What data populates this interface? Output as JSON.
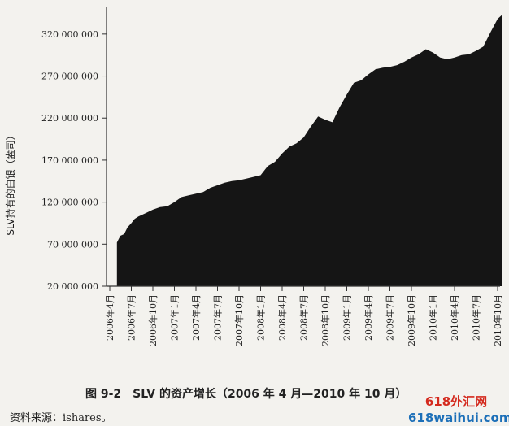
{
  "chart_data": {
    "type": "area",
    "title": "",
    "ylabel": "SLV持有的白银（盎司）",
    "xlabel": "",
    "ylim": [
      20000000,
      345000000
    ],
    "yticks": [
      20000000,
      70000000,
      120000000,
      170000000,
      220000000,
      270000000,
      320000000
    ],
    "ytick_labels": [
      "20 000 000",
      "70 000 000",
      "120 000 000",
      "170 000 000",
      "220 000 000",
      "270 000 000",
      "320 000 000"
    ],
    "xticks": [
      "2006年4月",
      "2006年7月",
      "2006年10月",
      "2007年1月",
      "2007年4月",
      "2007年7月",
      "2007年10月",
      "2008年1月",
      "2008年4月",
      "2008年7月",
      "2008年10月",
      "2009年1月",
      "2009年4月",
      "2009年7月",
      "2009年10月",
      "2010年1月",
      "2010年4月",
      "2010年7月",
      "2010年10月"
    ],
    "x_start": "2006-04",
    "x_end": "2010-10",
    "grid": false,
    "fill_color": "#151515",
    "points": [
      [
        "2006-05-01",
        72000000
      ],
      [
        "2006-05-15",
        80000000
      ],
      [
        "2006-06-01",
        82000000
      ],
      [
        "2006-06-15",
        90000000
      ],
      [
        "2006-07-01",
        95000000
      ],
      [
        "2006-07-15",
        100000000
      ],
      [
        "2006-08-01",
        103000000
      ],
      [
        "2006-09-01",
        107000000
      ],
      [
        "2006-10-01",
        111000000
      ],
      [
        "2006-11-01",
        114000000
      ],
      [
        "2006-12-01",
        115000000
      ],
      [
        "2007-01-01",
        120000000
      ],
      [
        "2007-02-01",
        126000000
      ],
      [
        "2007-03-01",
        128000000
      ],
      [
        "2007-04-01",
        130000000
      ],
      [
        "2007-05-01",
        132000000
      ],
      [
        "2007-06-01",
        137000000
      ],
      [
        "2007-07-01",
        140000000
      ],
      [
        "2007-08-01",
        143000000
      ],
      [
        "2007-09-01",
        145000000
      ],
      [
        "2007-10-01",
        146000000
      ],
      [
        "2007-11-01",
        148000000
      ],
      [
        "2007-12-01",
        150000000
      ],
      [
        "2008-01-01",
        152000000
      ],
      [
        "2008-02-01",
        163000000
      ],
      [
        "2008-03-01",
        168000000
      ],
      [
        "2008-04-01",
        178000000
      ],
      [
        "2008-05-01",
        186000000
      ],
      [
        "2008-06-01",
        190000000
      ],
      [
        "2008-07-01",
        197000000
      ],
      [
        "2008-08-01",
        210000000
      ],
      [
        "2008-09-01",
        222000000
      ],
      [
        "2008-10-01",
        218000000
      ],
      [
        "2008-11-01",
        215000000
      ],
      [
        "2008-12-01",
        233000000
      ],
      [
        "2009-01-01",
        248000000
      ],
      [
        "2009-02-01",
        262000000
      ],
      [
        "2009-03-01",
        265000000
      ],
      [
        "2009-04-01",
        272000000
      ],
      [
        "2009-05-01",
        278000000
      ],
      [
        "2009-06-01",
        280000000
      ],
      [
        "2009-07-01",
        281000000
      ],
      [
        "2009-08-01",
        283000000
      ],
      [
        "2009-09-01",
        287000000
      ],
      [
        "2009-10-01",
        292000000
      ],
      [
        "2009-11-01",
        296000000
      ],
      [
        "2009-12-01",
        302000000
      ],
      [
        "2010-01-01",
        298000000
      ],
      [
        "2010-02-01",
        292000000
      ],
      [
        "2010-03-01",
        290000000
      ],
      [
        "2010-04-01",
        292000000
      ],
      [
        "2010-05-01",
        295000000
      ],
      [
        "2010-06-01",
        296000000
      ],
      [
        "2010-07-01",
        300000000
      ],
      [
        "2010-08-01",
        305000000
      ],
      [
        "2010-09-01",
        322000000
      ],
      [
        "2010-10-01",
        338000000
      ],
      [
        "2010-10-20",
        343000000
      ]
    ]
  },
  "caption": "图 9-2　SLV 的资产增长（2006 年 4 月—2010 年 10 月）",
  "source": "资料来源：ishares。",
  "watermark": {
    "line1": "618外汇网",
    "line2": "618waihui.com"
  }
}
